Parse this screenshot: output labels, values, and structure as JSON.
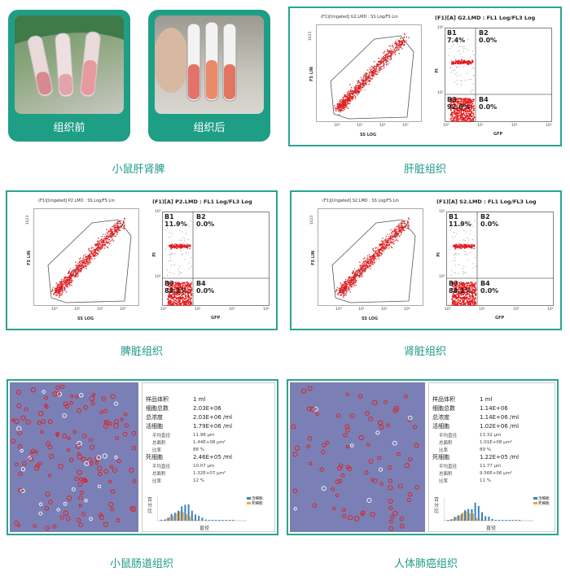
{
  "colors": {
    "accent": "#2aa58e",
    "caption": "#1f9a87",
    "dot": "#e31a1c",
    "gate": "#555555",
    "micro_bg": "#7a80b5"
  },
  "photos": [
    {
      "label": "组织前"
    },
    {
      "label": "组织后"
    }
  ],
  "captions": {
    "photos": "小鼠肝肾脾",
    "liver": "肝脏组织",
    "spleen": "脾脏组织",
    "kidney": "肾脏组织",
    "intestine": "小鼠肠道组织",
    "lung": "人体肺癌组织"
  },
  "flow": {
    "liver": {
      "scatter_title": "(F1)[Ungated] G2.LMD : SS Log/FS Lin",
      "quad_title": "(F1)[A] G2.LMD : FL1 Log/FL3 Log",
      "B1": "7.4%",
      "B2": "0.0%",
      "B3": "92.6%",
      "B4": "0.0%"
    },
    "spleen": {
      "scatter_title": "(F1)[Ungated] P2.LMD : SS Log/FS Lin",
      "quad_title": "(F1)[A] P2.LMD : FL1 Log/FL3 Log",
      "B1": "11.9%",
      "B2": "0.0%",
      "B3": "88.1%",
      "B4": "0.0%"
    },
    "kidney": {
      "scatter_title": "(F1)[Ungated] S2.LMD : SS Log/FS Lin",
      "quad_title": "(F1)[A] S2.LMD : FL1 Log/FL3 Log",
      "B1": "11.9%",
      "B2": "0.0%",
      "B3": "88.1%",
      "B4": "0.0%"
    },
    "axes": {
      "fs": "FS LIN",
      "ss": "SS LOG",
      "pi": "PI",
      "gfp": "GFP",
      "fs_max": "1023",
      "t0": "10⁰",
      "t1": "10¹",
      "t2": "10²",
      "t3": "10³",
      "y1": "10¹",
      "y3": "10³"
    },
    "quad_labels": {
      "b1": "B1",
      "b2": "B2",
      "b3": "B3",
      "b4": "B4"
    }
  },
  "counters": {
    "intestine": {
      "sample_volume": [
        "样品体积",
        "1 ml"
      ],
      "total_cells": [
        "细胞总数",
        "2.03E+06"
      ],
      "total_conc": [
        "总浓度",
        "2.03E+06 /ml"
      ],
      "live": [
        "活细胞",
        "1.79E+06 /ml"
      ],
      "live_diam": [
        "平均直径",
        "11.98 μm"
      ],
      "live_area": [
        "总面积",
        "1.44E+08 μm²"
      ],
      "live_ratio": [
        "比率",
        "88 %"
      ],
      "dead": [
        "死细胞",
        "2.46E+05 /ml"
      ],
      "dead_diam": [
        "平均直径",
        "10.07 μm"
      ],
      "dead_area": [
        "总面积",
        "1.32E+07 μm²"
      ],
      "dead_ratio": [
        "比率",
        "12 %"
      ],
      "hist_y": "百分比",
      "hist_x": "直径",
      "legend": [
        "活细胞",
        "死细胞"
      ]
    },
    "lung": {
      "sample_volume": [
        "样品体积",
        "1 ml"
      ],
      "total_cells": [
        "细胞总数",
        "1.14E+06"
      ],
      "total_conc": [
        "总浓度",
        "1.14E+06 /ml"
      ],
      "live": [
        "活细胞",
        "1.02E+06 /ml"
      ],
      "live_diam": [
        "平均直径",
        "13.32 μm"
      ],
      "live_area": [
        "总面积",
        "1.01E+08 μm²"
      ],
      "live_ratio": [
        "比率",
        "89 %"
      ],
      "dead": [
        "死细胞",
        "1.22E+05 /ml"
      ],
      "dead_diam": [
        "平均直径",
        "11.77 μm"
      ],
      "dead_area": [
        "总面积",
        "9.56E+06 μm²"
      ],
      "dead_ratio": [
        "比率",
        "11 %"
      ],
      "hist_y": "百分比",
      "hist_x": "直径",
      "legend": [
        "活细胞",
        "死细胞"
      ]
    }
  }
}
